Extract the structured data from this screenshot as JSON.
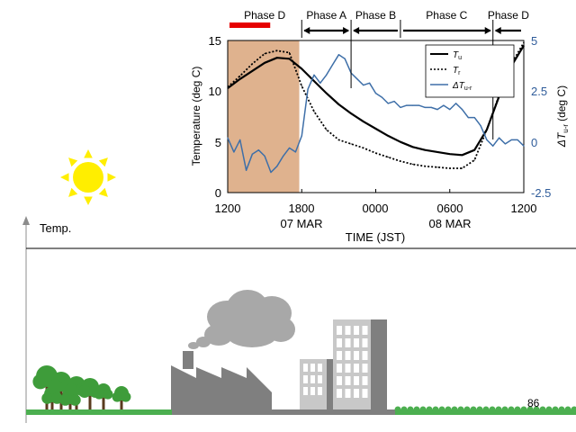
{
  "chart_data": {
    "type": "line",
    "ylabel_left": "Temperature (deg C)",
    "ylabel_right_main": "ΔT",
    "ylabel_right_sub": "u-r",
    "ylabel_right_unit": "(deg C)",
    "xlabel": "TIME (JST)",
    "y_left_ticks": [
      "15",
      "10",
      "5",
      "0"
    ],
    "y_right_ticks": [
      "5",
      "2.5",
      "0",
      "-2.5"
    ],
    "x_ticks": [
      "1200",
      "1800",
      "0000",
      "0600",
      "1200"
    ],
    "date_labels": [
      "07 MAR",
      "08 MAR"
    ],
    "ylim_left": [
      0,
      15
    ],
    "ylim_right": [
      -2.5,
      5
    ],
    "xlim_hours": [
      0,
      24
    ],
    "phases_top": [
      {
        "label": "Phase D",
        "start": 0,
        "end": 6,
        "color": "#e60000"
      },
      {
        "label": "Phase A",
        "start": 6,
        "end": 10
      },
      {
        "label": "Phase B",
        "start": 10,
        "end": 14
      },
      {
        "label": "Phase  C",
        "start": 14,
        "end": 21.5
      },
      {
        "label": "Phase D",
        "start": 21.5,
        "end": 24
      }
    ],
    "shaded_region": {
      "start": 0,
      "end": 5.8,
      "color": "#d9a57a"
    },
    "legend": [
      {
        "main": "T",
        "sub": "u",
        "style": "solid"
      },
      {
        "main": "T",
        "sub": "r",
        "style": "dotted"
      },
      {
        "main": "ΔT",
        "sub": "u-r",
        "style": "blue"
      }
    ],
    "series": [
      {
        "key": "Tu",
        "color": "#000000",
        "x": [
          0,
          1,
          2,
          3,
          4,
          5,
          6,
          7,
          8,
          9,
          10,
          11,
          12,
          13,
          14,
          15,
          16,
          17,
          18,
          19,
          20,
          21,
          22,
          23,
          24
        ],
        "y": [
          10.3,
          11.2,
          12.0,
          12.8,
          13.3,
          13.2,
          12.2,
          11.0,
          9.8,
          8.7,
          7.8,
          7.0,
          6.3,
          5.6,
          5.0,
          4.5,
          4.2,
          4.0,
          3.8,
          3.7,
          4.2,
          6.2,
          9.5,
          12.5,
          14.5
        ]
      },
      {
        "key": "Tr",
        "color": "#000000",
        "x": [
          0,
          1,
          2,
          3,
          4,
          5,
          6,
          7,
          8,
          9,
          10,
          11,
          12,
          13,
          14,
          15,
          16,
          17,
          18,
          19,
          20,
          21,
          22,
          23,
          24
        ],
        "y": [
          10.4,
          11.5,
          12.7,
          13.7,
          14.0,
          13.8,
          10.5,
          8.0,
          6.2,
          5.2,
          4.8,
          4.4,
          3.9,
          3.5,
          3.1,
          2.8,
          2.6,
          2.5,
          2.4,
          2.4,
          3.2,
          6.2,
          9.6,
          12.7,
          14.8
        ]
      },
      {
        "key": "dT",
        "color": "#3e6fa8",
        "x": [
          0,
          0.5,
          1,
          1.5,
          2,
          2.5,
          3,
          3.5,
          4,
          4.5,
          5,
          5.5,
          6,
          6.5,
          7,
          7.5,
          8,
          8.5,
          9,
          9.5,
          10,
          10.5,
          11,
          11.5,
          12,
          12.5,
          13,
          13.5,
          14,
          14.5,
          15,
          15.5,
          16,
          16.5,
          17,
          17.5,
          18,
          18.5,
          19,
          19.5,
          20,
          20.5,
          21,
          21.5,
          22,
          22.5,
          23,
          23.5,
          24
        ],
        "y": [
          0.2,
          -0.5,
          0.1,
          -1.4,
          -0.6,
          -0.4,
          -0.7,
          -1.5,
          -1.2,
          -0.7,
          -0.3,
          -0.5,
          0.3,
          2.6,
          3.3,
          2.9,
          3.3,
          3.8,
          4.3,
          4.1,
          3.4,
          3.1,
          2.8,
          2.9,
          2.4,
          2.2,
          1.9,
          2.0,
          1.7,
          1.8,
          1.8,
          1.8,
          1.7,
          1.7,
          1.6,
          1.8,
          1.6,
          1.9,
          1.6,
          1.2,
          1.2,
          0.8,
          0.1,
          -0.2,
          0.2,
          -0.1,
          0.1,
          0.1,
          -0.2
        ]
      }
    ]
  },
  "scene": {
    "axis_label": "Temp.",
    "page_number": "86",
    "colors": {
      "sun": "#ffee00",
      "grass": "#4caf50",
      "tree": "#3e9c3a",
      "building_light": "#c8c8c8",
      "building_dark": "#7f7f7f",
      "cloud": "#a8a8a8"
    },
    "icons": [
      "sun-icon",
      "cloud-icon",
      "factory-icon",
      "building-icon",
      "tree-icon"
    ]
  }
}
